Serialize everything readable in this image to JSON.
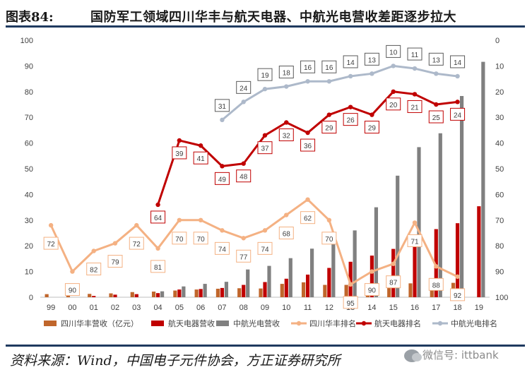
{
  "figure": {
    "label": "图表84:",
    "title": "国防军工领域四川华丰与航天电器、中航光电营收差距逐步拉大"
  },
  "source": {
    "text": "资料来源：Wind，中国电子元件协会，方正证券研究所",
    "watermark": "微信号: ittbank"
  },
  "chart_data": {
    "type": "bar",
    "categories": [
      "99",
      "00",
      "01",
      "02",
      "03",
      "04",
      "05",
      "06",
      "07",
      "08",
      "09",
      "10",
      "11",
      "12",
      "13",
      "14",
      "15",
      "16",
      "17",
      "18",
      "19"
    ],
    "left_axis": {
      "ylim": [
        0,
        100
      ],
      "ticks": [
        0,
        10,
        20,
        30,
        40,
        50,
        60,
        70,
        80,
        90,
        100
      ]
    },
    "right_axis": {
      "ylim": [
        100,
        0
      ],
      "inverted": true,
      "ticks": [
        0,
        10,
        20,
        30,
        40,
        50,
        60,
        70,
        80,
        90,
        100
      ]
    },
    "bar_series": [
      {
        "name": "四川华丰营收（亿元）",
        "color": "#c0662b",
        "values": [
          1.2,
          1.4,
          1.3,
          1.5,
          2.0,
          2.2,
          2.6,
          3.0,
          3.3,
          3.5,
          3.4,
          5.2,
          5.8,
          4.8,
          4.8,
          5.1,
          5.3,
          5.4,
          5.4,
          5.6,
          null
        ]
      },
      {
        "name": "航天电器营收",
        "color": "#c00000",
        "values": [
          null,
          null,
          0.5,
          1.0,
          1.2,
          1.6,
          3.0,
          3.2,
          3.6,
          4.8,
          5.9,
          7.2,
          8.8,
          11.4,
          13.8,
          16.2,
          18.8,
          23.0,
          26.5,
          28.8,
          35.4
        ]
      },
      {
        "name": "中航光电营收",
        "color": "#808080",
        "values": [
          null,
          null,
          null,
          null,
          null,
          2.3,
          4.2,
          5.2,
          6.0,
          10.8,
          12.2,
          15.2,
          18.9,
          22.0,
          26.0,
          35.0,
          47.3,
          58.4,
          63.8,
          78.3,
          91.6
        ]
      }
    ],
    "line_series": [
      {
        "name": "四川华丰排名",
        "color": "#f4b183",
        "values": [
          72,
          90,
          82,
          79,
          72,
          81,
          70,
          70,
          74,
          77,
          74,
          68,
          62,
          70,
          95,
          90,
          87,
          71,
          88,
          92,
          null
        ],
        "labels": [
          "72",
          "90",
          "82",
          "79",
          "72",
          "81",
          "70",
          "70",
          "74",
          "77",
          "74",
          "68",
          "62",
          "70",
          "95",
          "90",
          "87",
          "71",
          "88",
          "92",
          null
        ]
      },
      {
        "name": "航天电器排名",
        "color": "#c00000",
        "values": [
          null,
          null,
          null,
          null,
          null,
          64,
          39,
          41,
          49,
          48,
          37,
          32,
          36,
          29,
          26,
          29,
          20,
          21,
          25,
          24,
          null
        ],
        "labels": [
          null,
          null,
          null,
          null,
          null,
          "64",
          "39",
          "41",
          "49",
          "48",
          "37",
          "32",
          "36",
          "29",
          "26",
          "29",
          "20",
          "21",
          "25",
          "24",
          null
        ]
      },
      {
        "name": "中航光电排名",
        "color": "#adb9ca",
        "values": [
          null,
          null,
          null,
          null,
          null,
          null,
          null,
          null,
          31,
          24,
          19,
          18,
          16,
          16,
          14,
          13,
          10,
          11,
          13,
          14,
          null
        ],
        "labels": [
          null,
          null,
          null,
          null,
          null,
          null,
          null,
          null,
          "31",
          "24",
          "19",
          "18",
          "16",
          "16",
          "14",
          "13",
          "10",
          "11",
          "13",
          "14",
          null
        ]
      }
    ],
    "legend_position": "bottom",
    "grid": false
  }
}
